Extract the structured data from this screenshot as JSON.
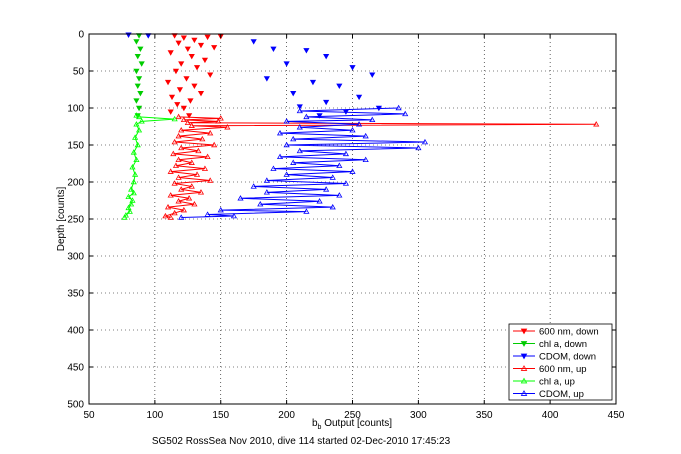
{
  "chart_data": {
    "type": "scatter",
    "title": "",
    "caption": "SG502 RossSea Nov 2010, dive 114 started 02-Dec-2010 17:45:23",
    "xlabel_main": "b",
    "xlabel_sub": "b",
    "xlabel_rest": " Output [counts]",
    "ylabel": "Depth [counts]",
    "xlim": [
      50,
      450
    ],
    "ylim": [
      0,
      500
    ],
    "y_reversed": true,
    "grid": true,
    "legend_placement": "bottom-right",
    "x_ticks": [
      50,
      100,
      150,
      200,
      250,
      300,
      350,
      400,
      450
    ],
    "y_ticks": [
      0,
      50,
      100,
      150,
      200,
      250,
      300,
      350,
      400,
      450,
      500
    ],
    "series": [
      {
        "name": "600 nm, down",
        "color": "#ff0000",
        "marker": "triangle-down",
        "connected": false,
        "points": [
          [
            115,
            2
          ],
          [
            122,
            5
          ],
          [
            130,
            8
          ],
          [
            140,
            4
          ],
          [
            150,
            3
          ],
          [
            118,
            12
          ],
          [
            135,
            15
          ],
          [
            125,
            20
          ],
          [
            145,
            18
          ],
          [
            112,
            25
          ],
          [
            128,
            30
          ],
          [
            138,
            35
          ],
          [
            120,
            40
          ],
          [
            132,
            45
          ],
          [
            116,
            50
          ],
          [
            142,
            55
          ],
          [
            124,
            60
          ],
          [
            110,
            65
          ],
          [
            130,
            70
          ],
          [
            119,
            75
          ],
          [
            135,
            80
          ],
          [
            113,
            85
          ],
          [
            127,
            90
          ],
          [
            117,
            95
          ],
          [
            122,
            100
          ],
          [
            112,
            105
          ],
          [
            126,
            110
          ]
        ]
      },
      {
        "name": "chl a, down",
        "color": "#00cc00",
        "marker": "triangle-down",
        "connected": false,
        "points": [
          [
            88,
            2
          ],
          [
            86,
            10
          ],
          [
            89,
            20
          ],
          [
            87,
            30
          ],
          [
            90,
            40
          ],
          [
            86,
            50
          ],
          [
            88,
            60
          ],
          [
            87,
            70
          ],
          [
            89,
            80
          ],
          [
            86,
            90
          ],
          [
            88,
            100
          ],
          [
            87,
            110
          ]
        ]
      },
      {
        "name": "CDOM, down",
        "color": "#0000ff",
        "marker": "triangle-down",
        "connected": false,
        "points": [
          [
            80,
            1
          ],
          [
            95,
            2
          ],
          [
            175,
            10
          ],
          [
            190,
            20
          ],
          [
            215,
            22
          ],
          [
            230,
            30
          ],
          [
            200,
            40
          ],
          [
            250,
            45
          ],
          [
            265,
            55
          ],
          [
            185,
            60
          ],
          [
            220,
            65
          ],
          [
            240,
            70
          ],
          [
            205,
            80
          ],
          [
            255,
            85
          ],
          [
            230,
            92
          ],
          [
            210,
            98
          ],
          [
            270,
            100
          ],
          [
            245,
            105
          ],
          [
            225,
            110
          ]
        ]
      },
      {
        "name": "600 nm, up",
        "color": "#ff0000",
        "marker": "triangle-up",
        "connected": true,
        "points": [
          [
            118,
            112
          ],
          [
            150,
            114
          ],
          [
            122,
            116
          ],
          [
            148,
            118
          ],
          [
            125,
            120
          ],
          [
            435,
            122
          ],
          [
            128,
            124
          ],
          [
            155,
            126
          ],
          [
            120,
            130
          ],
          [
            142,
            134
          ],
          [
            118,
            138
          ],
          [
            136,
            142
          ],
          [
            115,
            146
          ],
          [
            145,
            150
          ],
          [
            120,
            154
          ],
          [
            133,
            158
          ],
          [
            114,
            162
          ],
          [
            140,
            166
          ],
          [
            118,
            170
          ],
          [
            128,
            174
          ],
          [
            116,
            178
          ],
          [
            138,
            182
          ],
          [
            112,
            186
          ],
          [
            132,
            190
          ],
          [
            118,
            194
          ],
          [
            142,
            198
          ],
          [
            115,
            202
          ],
          [
            128,
            206
          ],
          [
            120,
            210
          ],
          [
            135,
            214
          ],
          [
            112,
            218
          ],
          [
            126,
            222
          ],
          [
            118,
            226
          ],
          [
            130,
            230
          ],
          [
            110,
            234
          ],
          [
            122,
            238
          ],
          [
            115,
            242
          ],
          [
            108,
            246
          ],
          [
            112,
            248
          ]
        ]
      },
      {
        "name": "chl a, up",
        "color": "#00ff00",
        "marker": "triangle-up",
        "connected": true,
        "points": [
          [
            86,
            110
          ],
          [
            88,
            112
          ],
          [
            115,
            115
          ],
          [
            90,
            118
          ],
          [
            86,
            122
          ],
          [
            88,
            130
          ],
          [
            85,
            140
          ],
          [
            87,
            150
          ],
          [
            84,
            160
          ],
          [
            86,
            170
          ],
          [
            83,
            180
          ],
          [
            85,
            190
          ],
          [
            84,
            200
          ],
          [
            82,
            210
          ],
          [
            84,
            215
          ],
          [
            80,
            220
          ],
          [
            83,
            225
          ],
          [
            82,
            230
          ],
          [
            80,
            235
          ],
          [
            81,
            240
          ],
          [
            78,
            245
          ],
          [
            77,
            248
          ]
        ]
      },
      {
        "name": "CDOM, up",
        "color": "#0000ff",
        "marker": "triangle-up",
        "connected": true,
        "points": [
          [
            285,
            100
          ],
          [
            210,
            104
          ],
          [
            290,
            108
          ],
          [
            215,
            112
          ],
          [
            265,
            116
          ],
          [
            200,
            118
          ],
          [
            255,
            122
          ],
          [
            210,
            126
          ],
          [
            250,
            130
          ],
          [
            195,
            134
          ],
          [
            260,
            138
          ],
          [
            205,
            142
          ],
          [
            305,
            146
          ],
          [
            200,
            150
          ],
          [
            300,
            154
          ],
          [
            210,
            158
          ],
          [
            245,
            162
          ],
          [
            195,
            166
          ],
          [
            260,
            170
          ],
          [
            205,
            174
          ],
          [
            240,
            178
          ],
          [
            190,
            182
          ],
          [
            250,
            186
          ],
          [
            200,
            190
          ],
          [
            235,
            194
          ],
          [
            185,
            198
          ],
          [
            245,
            202
          ],
          [
            175,
            206
          ],
          [
            230,
            210
          ],
          [
            185,
            214
          ],
          [
            240,
            218
          ],
          [
            165,
            222
          ],
          [
            225,
            226
          ],
          [
            180,
            230
          ],
          [
            235,
            234
          ],
          [
            150,
            238
          ],
          [
            215,
            240
          ],
          [
            140,
            244
          ],
          [
            160,
            246
          ],
          [
            120,
            248
          ]
        ]
      }
    ]
  }
}
